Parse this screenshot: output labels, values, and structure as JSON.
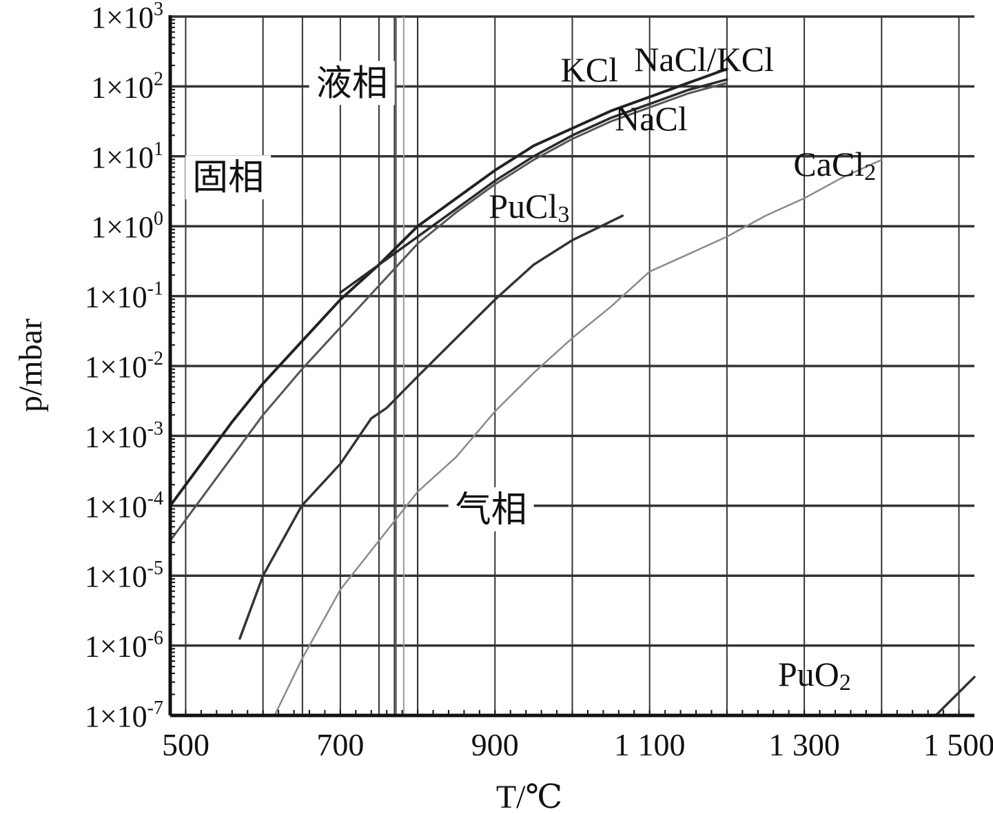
{
  "chart_data": {
    "type": "line",
    "title": "",
    "xlabel": "T/℃",
    "ylabel": "p/mbar",
    "xlim": [
      480,
      1520
    ],
    "ylim_exponent": [
      -7,
      3
    ],
    "yscale": "log",
    "grid": true,
    "x_ticks": [
      {
        "value": 500,
        "label": "500"
      },
      {
        "value": 700,
        "label": "700"
      },
      {
        "value": 900,
        "label": "900"
      },
      {
        "value": 1100,
        "label": "1 100"
      },
      {
        "value": 1300,
        "label": "1 300"
      },
      {
        "value": 1500,
        "label": "1 500"
      }
    ],
    "x_gridlines": [
      500,
      600,
      700,
      800,
      900,
      1000,
      1100,
      1200,
      1300,
      1400,
      1500
    ],
    "y_ticks": [
      {
        "exp": 3,
        "base": "1×10",
        "sup": "3"
      },
      {
        "exp": 2,
        "base": "1×10",
        "sup": "2"
      },
      {
        "exp": 1,
        "base": "1×10",
        "sup": "1"
      },
      {
        "exp": 0,
        "base": "1×10",
        "sup": "0"
      },
      {
        "exp": -1,
        "base": "1×10",
        "sup": "-1"
      },
      {
        "exp": -2,
        "base": "1×10",
        "sup": "-2"
      },
      {
        "exp": -3,
        "base": "1×10",
        "sup": "-3"
      },
      {
        "exp": -4,
        "base": "1×10",
        "sup": "-4"
      },
      {
        "exp": -5,
        "base": "1×10",
        "sup": "-5"
      },
      {
        "exp": -6,
        "base": "1×10",
        "sup": "-6"
      },
      {
        "exp": -7,
        "base": "1×10",
        "sup": "-7"
      }
    ],
    "melting_lines": [
      {
        "x": 651,
        "color": "#333333"
      },
      {
        "x": 750,
        "color": "#333333"
      },
      {
        "x": 770,
        "color": "#333333"
      },
      {
        "x": 772,
        "color": "#555555"
      },
      {
        "x": 782,
        "color": "#9a9a9a"
      },
      {
        "x": 800,
        "color": "#333333"
      }
    ],
    "series": [
      {
        "name": "KCl",
        "label": {
          "text": "KCl",
          "sub": "",
          "x": 985,
          "y_exp": 2.25
        },
        "color": "#222222",
        "width": 4,
        "points": [
          [
            480,
            -4.0
          ],
          [
            520,
            -3.4
          ],
          [
            560,
            -2.8
          ],
          [
            600,
            -2.25
          ],
          [
            650,
            -1.65
          ],
          [
            700,
            -1.05
          ],
          [
            750,
            -0.55
          ],
          [
            800,
            0.0
          ],
          [
            850,
            0.4
          ],
          [
            900,
            0.8
          ],
          [
            950,
            1.15
          ],
          [
            1000,
            1.4
          ],
          [
            1050,
            1.65
          ],
          [
            1100,
            1.85
          ],
          [
            1150,
            2.05
          ],
          [
            1200,
            2.25
          ]
        ]
      },
      {
        "name": "NaCl/KCl",
        "label": {
          "text": "NaCl/KCl",
          "sub": "",
          "x": 1080,
          "y_exp": 2.4
        },
        "color": "#2a2a2a",
        "width": 3.5,
        "points": [
          [
            700,
            -0.95
          ],
          [
            750,
            -0.55
          ],
          [
            800,
            -0.15
          ],
          [
            850,
            0.25
          ],
          [
            900,
            0.65
          ],
          [
            950,
            1.0
          ],
          [
            1000,
            1.3
          ],
          [
            1050,
            1.55
          ],
          [
            1100,
            1.75
          ],
          [
            1150,
            1.95
          ],
          [
            1200,
            2.1
          ]
        ]
      },
      {
        "name": "NaCl",
        "label": {
          "text": "NaCl",
          "sub": "",
          "x": 1055,
          "y_exp": 1.55
        },
        "color": "#555555",
        "width": 3,
        "points": [
          [
            480,
            -4.5
          ],
          [
            520,
            -3.9
          ],
          [
            560,
            -3.3
          ],
          [
            600,
            -2.7
          ],
          [
            650,
            -2.05
          ],
          [
            700,
            -1.45
          ],
          [
            750,
            -0.85
          ],
          [
            800,
            -0.25
          ],
          [
            850,
            0.2
          ],
          [
            900,
            0.6
          ],
          [
            950,
            0.95
          ],
          [
            1000,
            1.25
          ],
          [
            1050,
            1.5
          ],
          [
            1100,
            1.7
          ],
          [
            1150,
            1.9
          ],
          [
            1200,
            2.05
          ]
        ]
      },
      {
        "name": "PuCl3",
        "label": {
          "text": "PuCl",
          "sub": "3",
          "x": 892,
          "y_exp": 0.3
        },
        "color": "#333333",
        "width": 3.5,
        "points": [
          [
            570,
            -5.9
          ],
          [
            600,
            -5.0
          ],
          [
            650,
            -4.0
          ],
          [
            700,
            -3.4
          ],
          [
            740,
            -2.75
          ],
          [
            760,
            -2.6
          ],
          [
            800,
            -2.15
          ],
          [
            850,
            -1.6
          ],
          [
            900,
            -1.05
          ],
          [
            950,
            -0.55
          ],
          [
            1000,
            -0.2
          ],
          [
            1065,
            0.15
          ]
        ]
      },
      {
        "name": "CaCl2",
        "label": {
          "text": "CaCl",
          "sub": "2",
          "x": 1286,
          "y_exp": 0.9
        },
        "color": "#8a8a8a",
        "width": 2.5,
        "points": [
          [
            615,
            -7.0
          ],
          [
            650,
            -6.2
          ],
          [
            700,
            -5.2
          ],
          [
            750,
            -4.5
          ],
          [
            800,
            -3.8
          ],
          [
            850,
            -3.3
          ],
          [
            900,
            -2.65
          ],
          [
            950,
            -2.1
          ],
          [
            1000,
            -1.6
          ],
          [
            1050,
            -1.15
          ],
          [
            1100,
            -0.65
          ],
          [
            1150,
            -0.4
          ],
          [
            1200,
            -0.15
          ],
          [
            1250,
            0.15
          ],
          [
            1300,
            0.4
          ],
          [
            1350,
            0.7
          ],
          [
            1400,
            0.95
          ]
        ]
      },
      {
        "name": "PuO2",
        "label": {
          "text": "PuO",
          "sub": "2",
          "x": 1266,
          "y_exp": -6.4
        },
        "color": "#333333",
        "width": 3.5,
        "points": [
          [
            1470,
            -7.0
          ],
          [
            1520,
            -6.45
          ]
        ]
      }
    ],
    "region_labels": [
      {
        "text": "液相",
        "x": 715,
        "y_exp": 2.05
      },
      {
        "text": "固相",
        "x": 555,
        "y_exp": 0.7
      },
      {
        "text": "气相",
        "x": 895,
        "y_exp": -4.05
      }
    ]
  }
}
